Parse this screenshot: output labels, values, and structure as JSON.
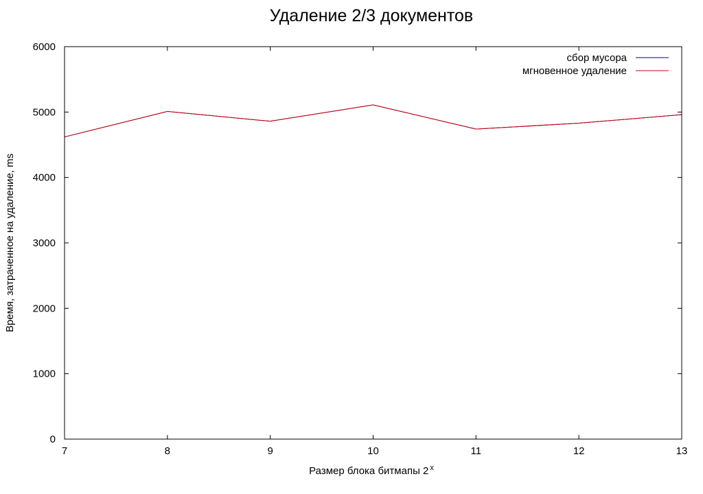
{
  "chart_data": {
    "type": "line",
    "title": "Удаление 2/3 документов",
    "xlabel": "Размер блока битмапы 2",
    "xlabel_superscript": "x",
    "ylabel": "Время, затраченное на удаление, ms",
    "x": [
      7,
      8,
      9,
      10,
      11,
      12,
      13
    ],
    "xlim": [
      7,
      13
    ],
    "ylim": [
      0,
      6000
    ],
    "x_ticks": [
      "7",
      "8",
      "9",
      "10",
      "11",
      "12",
      "13"
    ],
    "y_ticks": [
      "0",
      "1000",
      "2000",
      "3000",
      "4000",
      "5000",
      "6000"
    ],
    "grid": false,
    "legend_position": "top-right",
    "series": [
      {
        "name": "сбор мусора",
        "color": "#0000a0",
        "values": [
          4620,
          5010,
          4860,
          5110,
          4740,
          4830,
          4960
        ]
      },
      {
        "name": "мгновенное удаление",
        "color": "#d00000",
        "values": [
          4620,
          5010,
          4860,
          5110,
          4740,
          4830,
          4960
        ]
      }
    ]
  }
}
